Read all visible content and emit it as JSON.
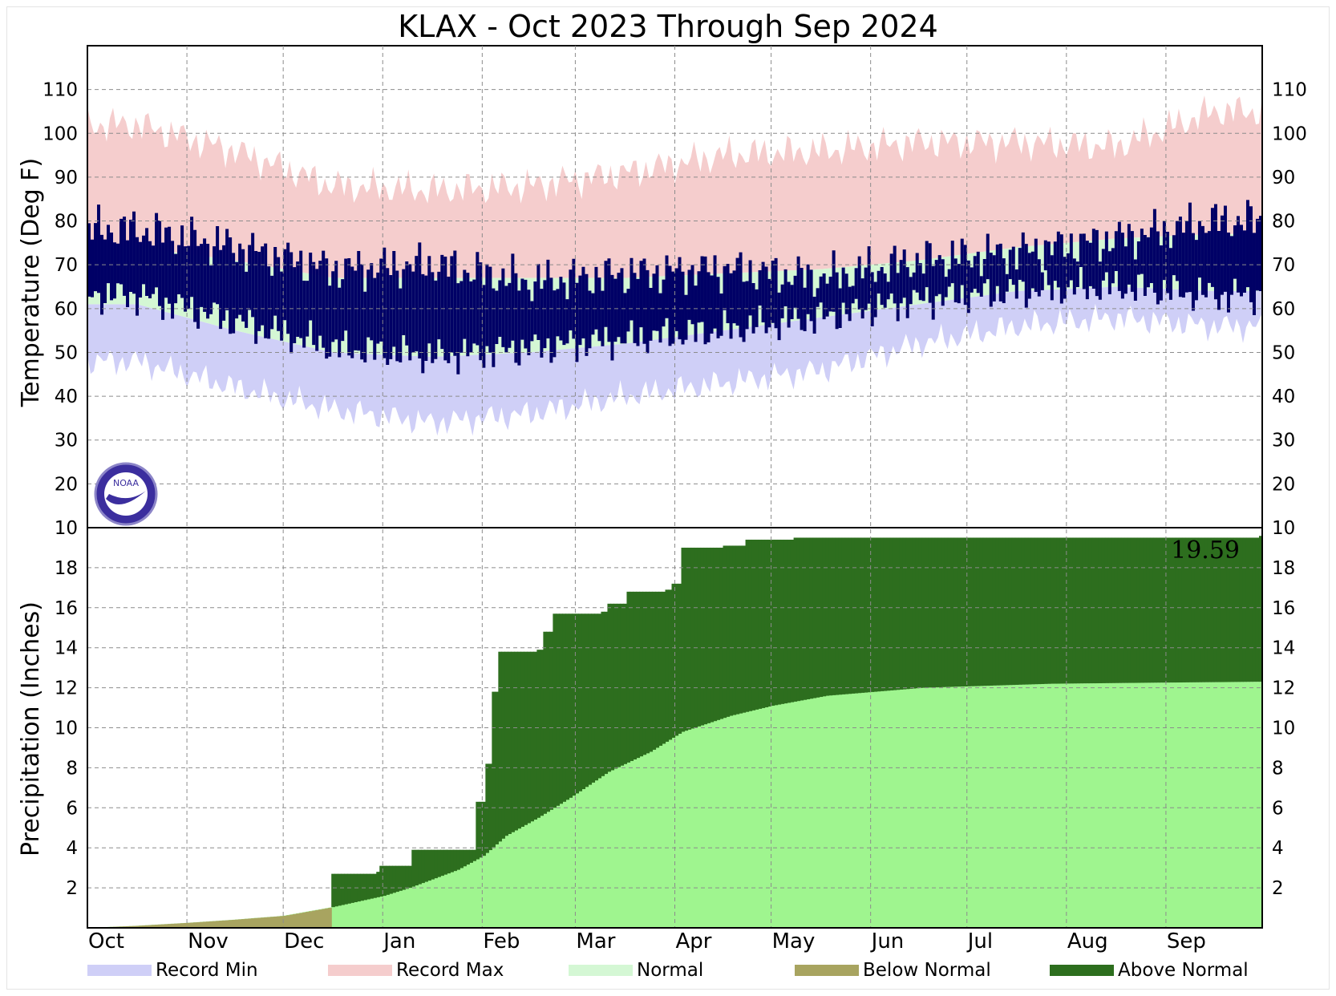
{
  "chart_data": [
    {
      "type": "area",
      "title": "KLAX - Oct 2023 Through Sep 2024",
      "ylabel": "Temperature (Deg F)",
      "ylim": [
        10,
        120
      ],
      "yticks": [
        10,
        20,
        30,
        40,
        50,
        60,
        70,
        80,
        90,
        100,
        110
      ],
      "grid": true,
      "months": [
        "Oct",
        "Nov",
        "Dec",
        "Jan",
        "Feb",
        "Mar",
        "Apr",
        "May",
        "Jun",
        "Jul",
        "Aug",
        "Sep"
      ],
      "monthly": {
        "record_max": [
          102,
          96,
          88,
          87,
          88,
          91,
          95,
          96,
          98,
          98,
          97,
          105
        ],
        "record_min": [
          48,
          42,
          37,
          34,
          36,
          40,
          43,
          46,
          52,
          56,
          58,
          56
        ],
        "normal_high": [
          74,
          71,
          67,
          67,
          67,
          67,
          68,
          69,
          71,
          74,
          76,
          77
        ],
        "normal_low": [
          61,
          55,
          50,
          49,
          50,
          52,
          55,
          58,
          61,
          64,
          65,
          64
        ],
        "observed_high": [
          78,
          74,
          69,
          70,
          66,
          68,
          69,
          67,
          71,
          73,
          76,
          80
        ],
        "observed_low": [
          63,
          57,
          51,
          49,
          51,
          53,
          55,
          58,
          62,
          64,
          65,
          63
        ]
      },
      "series": [
        {
          "name": "Record Min",
          "color": "#cfcff7"
        },
        {
          "name": "Record Max",
          "color": "#f5cdcd"
        },
        {
          "name": "Normal",
          "color": "#d4f7d4"
        }
      ],
      "observed_color": "#000066"
    },
    {
      "type": "area",
      "ylabel": "Precipitation (Inches)",
      "ylim": [
        0,
        20
      ],
      "yticks": [
        2,
        4,
        6,
        8,
        10,
        12,
        14,
        16,
        18
      ],
      "grid": true,
      "months": [
        "Oct",
        "Nov",
        "Dec",
        "Jan",
        "Feb",
        "Mar",
        "Apr",
        "May",
        "Jun",
        "Jul",
        "Aug",
        "Sep"
      ],
      "year_total": "19.59",
      "observed_cumulative": [
        [
          0,
          0
        ],
        [
          75,
          0
        ],
        [
          76,
          2.7
        ],
        [
          90,
          2.8
        ],
        [
          91,
          3.1
        ],
        [
          100,
          3.1
        ],
        [
          101,
          3.9
        ],
        [
          120,
          3.9
        ],
        [
          121,
          6.3
        ],
        [
          124,
          8.2
        ],
        [
          126,
          11.8
        ],
        [
          128,
          13.8
        ],
        [
          140,
          13.9
        ],
        [
          142,
          14.8
        ],
        [
          145,
          15.7
        ],
        [
          160,
          15.8
        ],
        [
          162,
          16.2
        ],
        [
          168,
          16.8
        ],
        [
          180,
          16.9
        ],
        [
          182,
          17.2
        ],
        [
          185,
          19.0
        ],
        [
          198,
          19.1
        ],
        [
          205,
          19.4
        ],
        [
          220,
          19.5
        ],
        [
          365,
          19.59
        ]
      ],
      "normal_cumulative": [
        [
          0,
          0
        ],
        [
          15,
          0.1
        ],
        [
          31,
          0.25
        ],
        [
          45,
          0.4
        ],
        [
          61,
          0.6
        ],
        [
          75,
          1.0
        ],
        [
          92,
          1.6
        ],
        [
          100,
          2.0
        ],
        [
          115,
          2.9
        ],
        [
          123,
          3.6
        ],
        [
          130,
          4.6
        ],
        [
          140,
          5.5
        ],
        [
          150,
          6.5
        ],
        [
          162,
          7.8
        ],
        [
          175,
          8.8
        ],
        [
          185,
          9.8
        ],
        [
          200,
          10.6
        ],
        [
          213,
          11.1
        ],
        [
          230,
          11.6
        ],
        [
          245,
          11.8
        ],
        [
          260,
          12.0
        ],
        [
          280,
          12.1
        ],
        [
          300,
          12.2
        ],
        [
          330,
          12.25
        ],
        [
          365,
          12.3
        ]
      ],
      "series": [
        {
          "name": "Below Normal",
          "color": "#a8a460"
        },
        {
          "name": "Above Normal",
          "color": "#2d6e1e"
        }
      ],
      "normal_color": "#9ff58f"
    }
  ],
  "legend": [
    {
      "label": "Record Min",
      "color": "#cfcff7"
    },
    {
      "label": "Record Max",
      "color": "#f5cdcd"
    },
    {
      "label": "Normal",
      "color": "#d4f7d4"
    },
    {
      "label": "Below Normal",
      "color": "#a8a460"
    },
    {
      "label": "Above Normal",
      "color": "#2d6e1e"
    }
  ]
}
